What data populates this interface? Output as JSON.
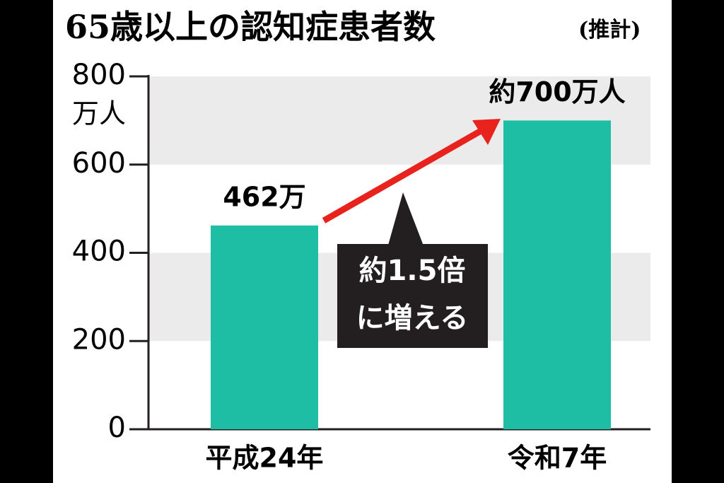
{
  "chart_data": {
    "type": "bar",
    "title": "65歳以上の認知症患者数",
    "title_note": "(推計)",
    "y_unit": "万人",
    "categories": [
      "平成24年",
      "令和7年"
    ],
    "values": [
      462,
      700
    ],
    "value_labels": [
      "462万",
      "約700万人"
    ],
    "color": "#1ebea5",
    "ylim": [
      0,
      800
    ],
    "yticks": [
      0,
      200,
      400,
      600,
      800
    ],
    "grid": "bands",
    "annotation": [
      "約1.5倍",
      "に増える"
    ]
  }
}
